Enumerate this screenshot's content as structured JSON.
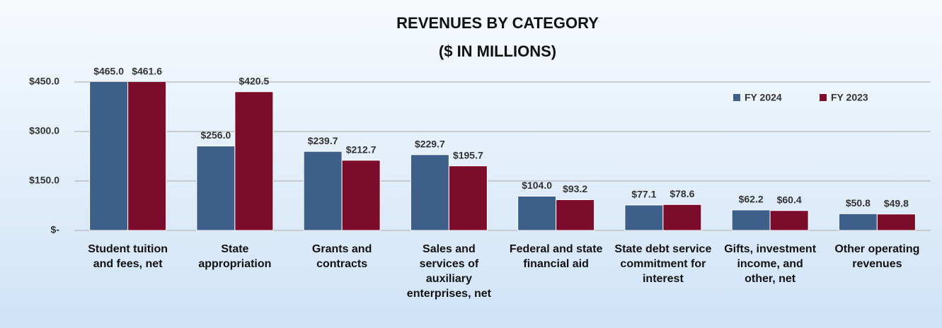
{
  "chart_data": {
    "type": "bar",
    "title": "REVENUES BY CATEGORY",
    "subtitle": "($ IN MILLIONS)",
    "categories": [
      "Student tuition and fees, net",
      "State appropriation",
      "Grants and contracts",
      "Sales and services of auxiliary enterprises, net",
      "Federal and state financial aid",
      "State debt service commitment for interest",
      "Gifts, investment income, and other, net",
      "Other operating revenues"
    ],
    "series": [
      {
        "name": "FY 2024",
        "color": "#3e5f8a",
        "values": [
          465.0,
          256.0,
          239.7,
          229.7,
          104.0,
          77.1,
          62.2,
          50.8
        ],
        "value_labels": [
          "$465.0",
          "$256.0",
          "$239.7",
          "$229.7",
          "$104.0",
          "$77.1",
          "$62.2",
          "$50.8"
        ]
      },
      {
        "name": "FY 2023",
        "color": "#7b0c2c",
        "values": [
          461.6,
          420.5,
          212.7,
          195.7,
          93.2,
          78.6,
          60.4,
          49.8
        ],
        "value_labels": [
          "$461.6",
          "$420.5",
          "$212.7",
          "$195.7",
          "$93.2",
          "$78.6",
          "$60.4",
          "$49.8"
        ]
      }
    ],
    "ylim": [
      0,
      450
    ],
    "yticks": [
      {
        "value": 0,
        "label": "$-"
      },
      {
        "value": 150,
        "label": "$150.0"
      },
      {
        "value": 300,
        "label": "$300.0"
      },
      {
        "value": 450,
        "label": "$450.0"
      }
    ],
    "grid": true,
    "legend": "top-right"
  }
}
